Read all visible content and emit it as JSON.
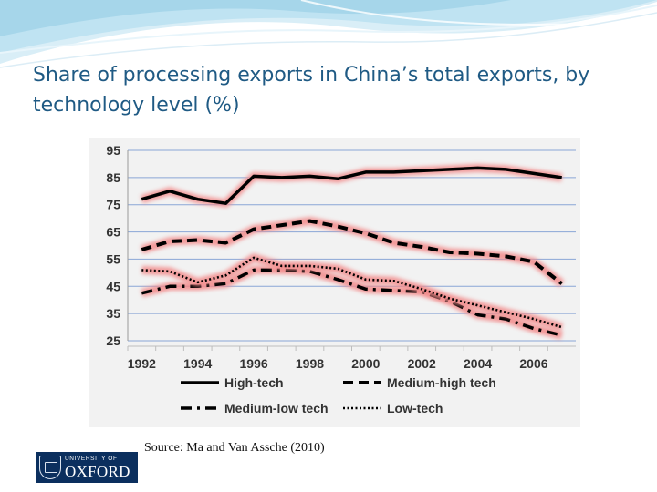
{
  "slide": {
    "title": "Share of processing exports in China’s total exports, by technology level (%)",
    "source": "Source: Ma and Van Assche (2010)"
  },
  "logo": {
    "line1": "UNIVERSITY OF",
    "line2": "OXFORD"
  },
  "colors": {
    "title": "#1f5a84",
    "glow": "#f28a8a",
    "line": "#000000",
    "grid": "#8aa6d6",
    "brand": "#0b2f5e"
  },
  "chart_data": {
    "type": "line",
    "title": "",
    "xlabel": "",
    "ylabel": "",
    "ylim": [
      25,
      95
    ],
    "yticks": [
      95,
      85,
      75,
      65,
      55,
      45,
      35,
      25
    ],
    "xlim": [
      1991.5,
      2007.5
    ],
    "xticks": [
      1992,
      1994,
      1996,
      1998,
      2000,
      2002,
      2004,
      2006
    ],
    "series": [
      {
        "name": "High-tech",
        "style": "solid",
        "x": [
          1992,
          1993,
          1994,
          1995,
          1996,
          1997,
          1998,
          1999,
          2000,
          2001,
          2002,
          2003,
          2004,
          2005,
          2006,
          2007
        ],
        "values": [
          77,
          80,
          77,
          75.5,
          85.5,
          85,
          85.5,
          84.5,
          87,
          87,
          87.5,
          88,
          88.5,
          88,
          86.5,
          85
        ]
      },
      {
        "name": "Medium-high tech",
        "style": "dashed",
        "x": [
          1992,
          1993,
          1994,
          1995,
          1996,
          1997,
          1998,
          1999,
          2000,
          2001,
          2002,
          2003,
          2004,
          2005,
          2006,
          2007
        ],
        "values": [
          58.5,
          61.5,
          62,
          61,
          66,
          67.5,
          69,
          67,
          64.5,
          61,
          59.5,
          57.5,
          57,
          56,
          54,
          46
        ]
      },
      {
        "name": "Medium-low tech",
        "style": "dashdot",
        "x": [
          1992,
          1993,
          1994,
          1995,
          1996,
          1997,
          1998,
          1999,
          2000,
          2001,
          2002,
          2003,
          2004,
          2005,
          2006,
          2007
        ],
        "values": [
          42.5,
          45,
          45,
          46,
          51,
          51,
          50.5,
          47.5,
          44,
          43.5,
          43,
          39.5,
          34.5,
          33,
          29.5,
          27
        ]
      },
      {
        "name": "Low-tech",
        "style": "dotted",
        "x": [
          1992,
          1993,
          1994,
          1995,
          1996,
          1997,
          1998,
          1999,
          2000,
          2001,
          2002,
          2003,
          2004,
          2005,
          2006,
          2007
        ],
        "values": [
          51,
          50.5,
          46.5,
          49,
          55.5,
          52.5,
          52.5,
          51.5,
          47.5,
          47,
          44,
          40.5,
          38,
          35.5,
          33,
          30
        ]
      }
    ],
    "legend": {
      "placement": "bottom",
      "entries": [
        "High-tech",
        "Medium-high tech",
        "Medium-low tech",
        "Low-tech"
      ]
    }
  }
}
